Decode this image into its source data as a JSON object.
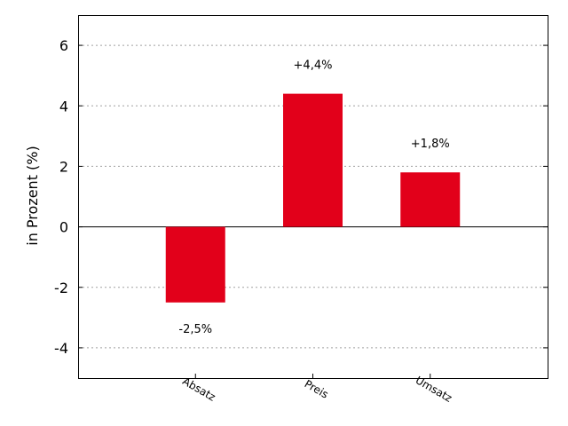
{
  "chart_data": {
    "type": "bar",
    "title": "",
    "xlabel": "",
    "ylabel": "in Prozent (%)",
    "categories": [
      "Absatz",
      "Preis",
      "Umsatz"
    ],
    "values": [
      -2.5,
      4.4,
      1.8
    ],
    "data_labels": [
      "-2,5%",
      "+4,4%",
      "+1,8%"
    ],
    "ylim": [
      -5,
      7
    ],
    "y_ticks": [
      -4,
      -2,
      0,
      2,
      4,
      6
    ],
    "y_tick_labels": [
      "-4",
      "-2",
      "0",
      "2",
      "4",
      "6"
    ],
    "grid": true,
    "legend": "none",
    "bar_color": "#e2001a"
  }
}
